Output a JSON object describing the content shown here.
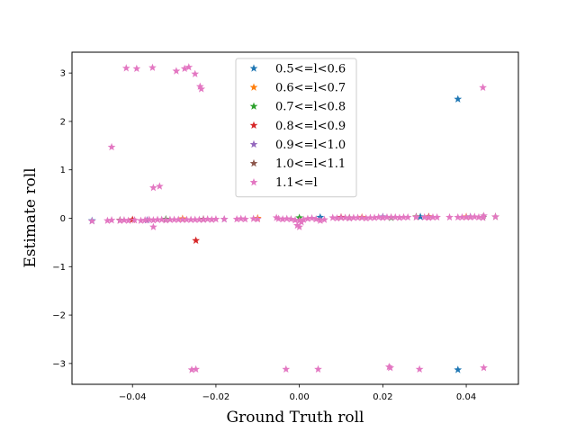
{
  "chart_data": {
    "type": "scatter",
    "marker": "star",
    "title": "",
    "xlabel": "Ground Truth roll",
    "ylabel": "Estimate roll",
    "xlim": [
      -0.0545,
      0.0525
    ],
    "ylim": [
      -3.43,
      3.43
    ],
    "xticks": [
      -0.04,
      -0.02,
      0.0,
      0.02,
      0.04
    ],
    "xtick_labels": [
      "−0.04",
      "−0.02",
      "0.00",
      "0.02",
      "0.04"
    ],
    "yticks": [
      -3,
      -2,
      -1,
      0,
      1,
      2,
      3
    ],
    "ytick_labels": [
      "−3",
      "−2",
      "−1",
      "0",
      "1",
      "2",
      "3"
    ],
    "grid": false,
    "legend_position": "top-center",
    "series": [
      {
        "name": "0.5<=l<0.6",
        "color": "#1f77b4",
        "points": [
          [
            0.038,
            2.46
          ],
          [
            0.038,
            -3.13
          ],
          [
            -0.0497,
            -0.05
          ],
          [
            0.005,
            0.02
          ],
          [
            0.029,
            0.03
          ]
        ]
      },
      {
        "name": "0.6<=l<0.7",
        "color": "#ff7f0e",
        "points": [
          [
            -0.028,
            -0.01
          ],
          [
            0.015,
            0.02
          ],
          [
            0.04,
            0.03
          ],
          [
            -0.01,
            0.0
          ]
        ]
      },
      {
        "name": "0.7<=l<0.8",
        "color": "#2ca02c",
        "points": [
          [
            -0.032,
            -0.02
          ],
          [
            0.022,
            0.01
          ],
          [
            0.044,
            0.02
          ],
          [
            0.0,
            0.01
          ]
        ]
      },
      {
        "name": "0.8<=l<0.9",
        "color": "#d62728",
        "points": [
          [
            -0.0248,
            -0.46
          ],
          [
            0.01,
            0.02
          ],
          [
            -0.04,
            -0.03
          ],
          [
            0.031,
            0.03
          ]
        ]
      },
      {
        "name": "0.9<=l<1.0",
        "color": "#9467bd",
        "points": [
          [
            -0.0365,
            -0.04
          ],
          [
            0.02,
            0.03
          ],
          [
            0.041,
            0.03
          ],
          [
            -0.018,
            -0.02
          ]
        ]
      },
      {
        "name": "1.0<=l<1.1",
        "color": "#8c564b",
        "points": [
          [
            -0.023,
            -0.02
          ],
          [
            0.028,
            0.03
          ],
          [
            0.047,
            0.03
          ],
          [
            -0.043,
            -0.04
          ],
          [
            0.012,
            0.01
          ]
        ]
      },
      {
        "name": "1.1<=l",
        "color": "#e377c2",
        "points": [
          [
            -0.0497,
            -0.06
          ],
          [
            -0.046,
            -0.05
          ],
          [
            -0.045,
            -0.04
          ],
          [
            -0.043,
            -0.05
          ],
          [
            -0.042,
            -0.04
          ],
          [
            -0.041,
            -0.05
          ],
          [
            -0.0395,
            -0.04
          ],
          [
            -0.038,
            -0.05
          ],
          [
            -0.037,
            -0.04
          ],
          [
            -0.036,
            -0.03
          ],
          [
            -0.035,
            -0.04
          ],
          [
            -0.034,
            -0.03
          ],
          [
            -0.033,
            -0.03
          ],
          [
            -0.032,
            -0.04
          ],
          [
            -0.031,
            -0.03
          ],
          [
            -0.03,
            -0.03
          ],
          [
            -0.029,
            -0.03
          ],
          [
            -0.028,
            -0.03
          ],
          [
            -0.027,
            -0.03
          ],
          [
            -0.026,
            -0.03
          ],
          [
            -0.025,
            -0.03
          ],
          [
            -0.024,
            -0.03
          ],
          [
            -0.023,
            -0.03
          ],
          [
            -0.022,
            -0.02
          ],
          [
            -0.021,
            -0.03
          ],
          [
            -0.02,
            -0.02
          ],
          [
            -0.018,
            -0.02
          ],
          [
            -0.015,
            -0.02
          ],
          [
            -0.014,
            -0.01
          ],
          [
            -0.013,
            -0.02
          ],
          [
            -0.011,
            -0.01
          ],
          [
            -0.01,
            -0.02
          ],
          [
            -0.005,
            -0.01
          ],
          [
            -0.0055,
            0.01
          ],
          [
            -0.004,
            -0.02
          ],
          [
            -0.003,
            -0.01
          ],
          [
            -0.002,
            -0.02
          ],
          [
            -0.001,
            -0.04
          ],
          [
            0.0,
            -0.05
          ],
          [
            0.0005,
            -0.08
          ],
          [
            -0.0005,
            -0.15
          ],
          [
            0.0,
            -0.18
          ],
          [
            0.001,
            -0.03
          ],
          [
            0.002,
            -0.01
          ],
          [
            0.003,
            0.0
          ],
          [
            0.004,
            -0.02
          ],
          [
            0.005,
            -0.05
          ],
          [
            0.006,
            -0.03
          ],
          [
            0.008,
            0.01
          ],
          [
            0.009,
            0.0
          ],
          [
            0.01,
            0.01
          ],
          [
            0.011,
            0.01
          ],
          [
            0.012,
            0.0
          ],
          [
            0.013,
            0.01
          ],
          [
            0.014,
            0.01
          ],
          [
            0.015,
            0.01
          ],
          [
            0.016,
            0.0
          ],
          [
            0.017,
            0.01
          ],
          [
            0.018,
            0.01
          ],
          [
            0.019,
            0.02
          ],
          [
            0.02,
            0.01
          ],
          [
            0.021,
            0.02
          ],
          [
            0.022,
            0.02
          ],
          [
            0.023,
            0.02
          ],
          [
            0.024,
            0.01
          ],
          [
            0.025,
            0.02
          ],
          [
            0.026,
            0.02
          ],
          [
            0.028,
            0.02
          ],
          [
            0.03,
            0.02
          ],
          [
            0.031,
            0.01
          ],
          [
            0.032,
            0.02
          ],
          [
            0.033,
            0.02
          ],
          [
            0.036,
            0.02
          ],
          [
            0.038,
            0.02
          ],
          [
            0.039,
            0.02
          ],
          [
            0.04,
            0.02
          ],
          [
            0.041,
            0.02
          ],
          [
            0.042,
            0.03
          ],
          [
            0.043,
            0.02
          ],
          [
            0.044,
            0.01
          ],
          [
            0.0442,
            0.05
          ],
          [
            0.047,
            0.03
          ],
          [
            -0.035,
            -0.18
          ],
          [
            -0.0415,
            3.1
          ],
          [
            -0.039,
            3.09
          ],
          [
            -0.0352,
            3.11
          ],
          [
            -0.0295,
            3.04
          ],
          [
            -0.0275,
            3.09
          ],
          [
            -0.0265,
            3.12
          ],
          [
            -0.025,
            2.98
          ],
          [
            -0.0238,
            2.72
          ],
          [
            -0.0235,
            2.67
          ],
          [
            -0.045,
            1.47
          ],
          [
            -0.035,
            0.63
          ],
          [
            -0.0335,
            0.66
          ],
          [
            0.044,
            2.7
          ],
          [
            -0.0258,
            -3.13
          ],
          [
            -0.0248,
            -3.12
          ],
          [
            -0.0032,
            -3.12
          ],
          [
            0.0045,
            -3.12
          ],
          [
            0.0215,
            -3.07
          ],
          [
            0.0218,
            -3.09
          ],
          [
            0.0288,
            -3.12
          ],
          [
            0.0442,
            -3.09
          ]
        ]
      }
    ]
  }
}
